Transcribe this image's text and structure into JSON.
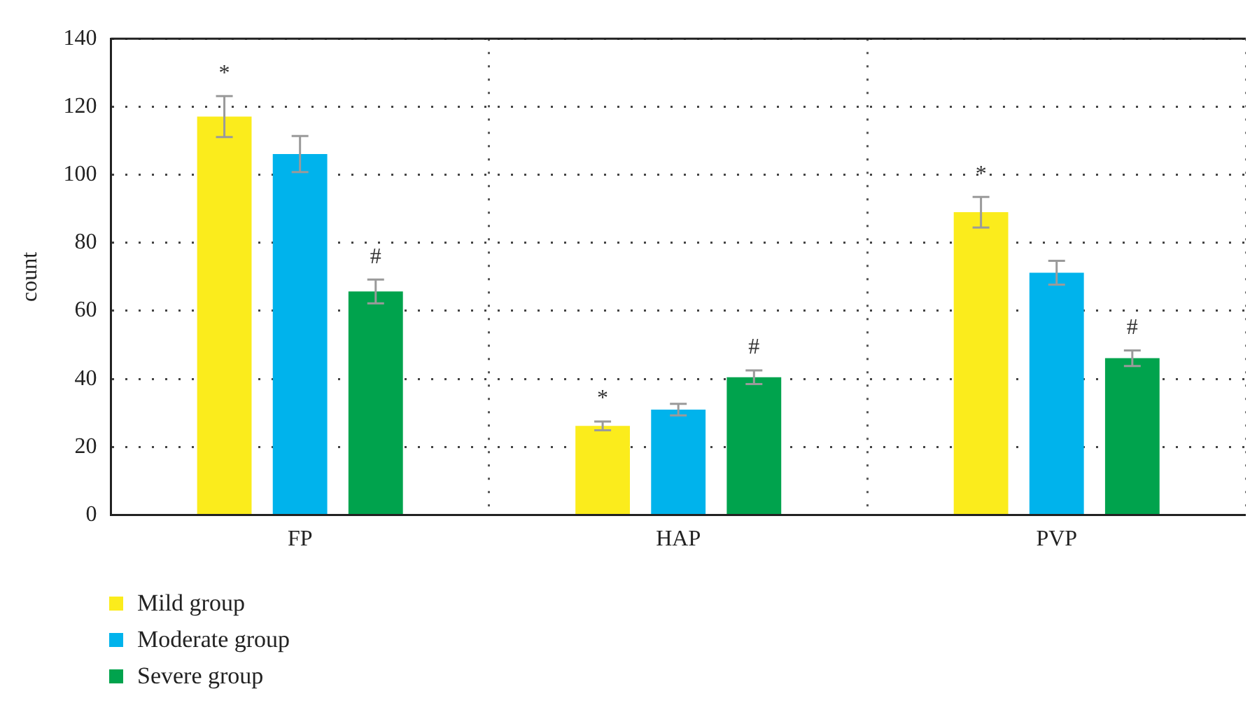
{
  "chart_data": {
    "type": "bar",
    "ylabel": "count",
    "categories": [
      "FP",
      "HAP",
      "PVP"
    ],
    "series": [
      {
        "name": "Mild group",
        "color": "#fbec1c",
        "values": [
          117.1,
          26.2,
          89
        ],
        "errors": [
          6,
          1.3,
          4.5
        ]
      },
      {
        "name": "Moderate group",
        "color": "#00b3ec",
        "values": [
          106.1,
          31,
          71.2
        ],
        "errors": [
          5.3,
          1.7,
          3.5
        ]
      },
      {
        "name": "Severe group",
        "color": "#00a34d",
        "values": [
          65.7,
          40.5,
          46.1
        ],
        "errors": [
          3.5,
          2,
          2.3
        ]
      }
    ],
    "ylim": [
      0,
      140
    ],
    "yticks": [
      0,
      20,
      40,
      60,
      80,
      100,
      120,
      140
    ],
    "grid": true,
    "legend": "bottom left",
    "annotations": [
      "*",
      "#",
      "*",
      "#",
      "*",
      "#"
    ]
  }
}
